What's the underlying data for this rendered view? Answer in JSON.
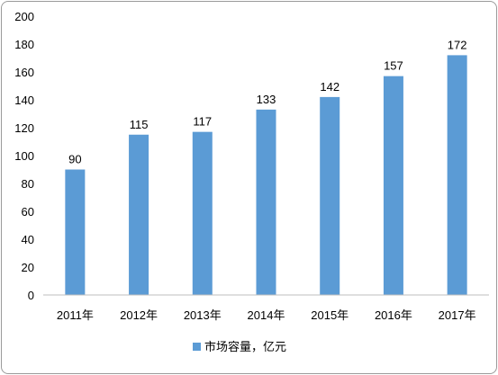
{
  "chart_data": {
    "type": "bar",
    "categories": [
      "2011年",
      "2012年",
      "2013年",
      "2014年",
      "2015年",
      "2016年",
      "2017年"
    ],
    "series": [
      {
        "name": "市场容量，亿元",
        "values": [
          90,
          115,
          117,
          133,
          142,
          157,
          172
        ]
      }
    ],
    "ylim": [
      0,
      200
    ],
    "yticks": [
      0,
      20,
      40,
      60,
      80,
      100,
      120,
      140,
      160,
      180,
      200
    ],
    "grid": false,
    "data_labels": true,
    "legend_position": "bottom",
    "bar_color": "#5b9bd5"
  }
}
